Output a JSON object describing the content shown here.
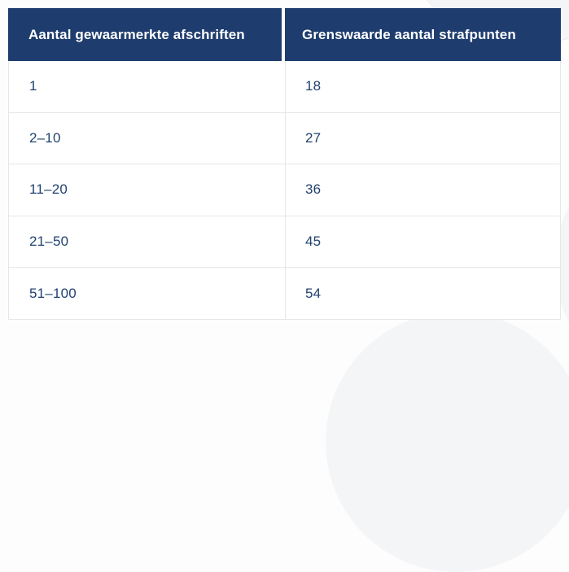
{
  "colors": {
    "header_bg": "#1e3d6e",
    "header_text": "#ffffff",
    "body_text": "#21426f",
    "row_border": "#e7e7e8",
    "page_bg": "#fdfdfe"
  },
  "table": {
    "columns": [
      {
        "label": "Aantal gewaarmerkte afschriften"
      },
      {
        "label": "Grenswaarde aantal strafpunten"
      }
    ],
    "rows": [
      {
        "afschriften": "1",
        "strafpunten": "18"
      },
      {
        "afschriften": "2–10",
        "strafpunten": "27"
      },
      {
        "afschriften": "11–20",
        "strafpunten": "36"
      },
      {
        "afschriften": "21–50",
        "strafpunten": "45"
      },
      {
        "afschriften": "51–100",
        "strafpunten": "54"
      }
    ]
  }
}
